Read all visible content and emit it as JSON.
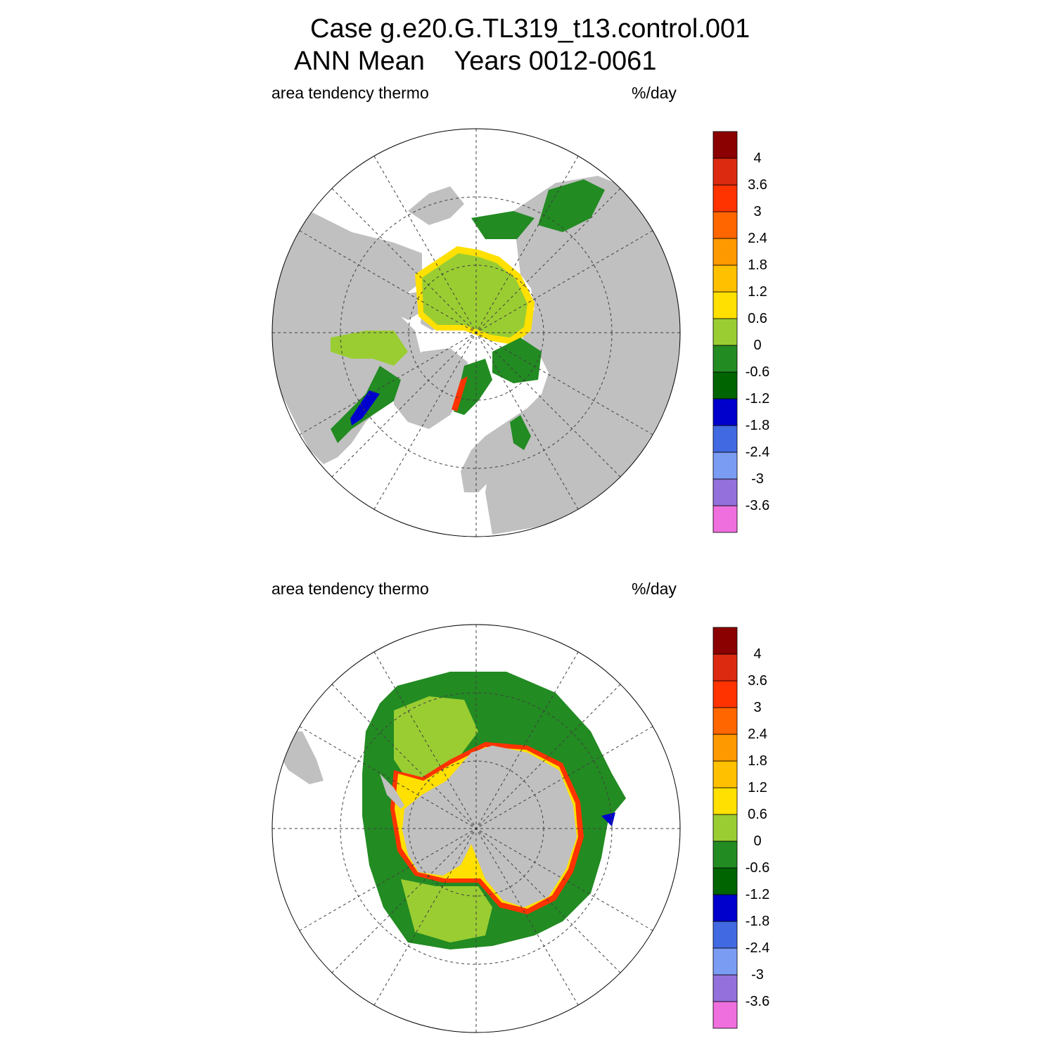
{
  "header": {
    "title_line1": "Case g.e20.G.TL319_t13.control.001",
    "title_line2": "ANN Mean    Years 0012-0061"
  },
  "panels": [
    {
      "name": "arctic",
      "left_label": "area tendency thermo",
      "right_label": "%/day"
    },
    {
      "name": "antarctic",
      "left_label": "area tendency thermo",
      "right_label": "%/day"
    }
  ],
  "colorbar": {
    "colors": [
      "#ee6fdd",
      "#9370db",
      "#7b9cf3",
      "#4169e1",
      "#0000cd",
      "#006400",
      "#228b22",
      "#9acd32",
      "#ffe000",
      "#ffc000",
      "#ff9900",
      "#ff6600",
      "#ff3300",
      "#dc2a10",
      "#8b0000"
    ],
    "labels": [
      "-3.6",
      "-3",
      "-2.4",
      "-1.8",
      "-1.2",
      "-0.6",
      "0",
      "0.6",
      "1.2",
      "1.8",
      "2.4",
      "3",
      "3.6",
      "4"
    ]
  },
  "map_colors": {
    "land": "#c0c0c0",
    "ocean": "#ffffff",
    "ice_main": "#9acd32",
    "ice_loss": "#228b22",
    "ice_edge": "#ffe000",
    "ice_edge_strong": "#ff3300",
    "ice_neg": "#0000cd"
  }
}
